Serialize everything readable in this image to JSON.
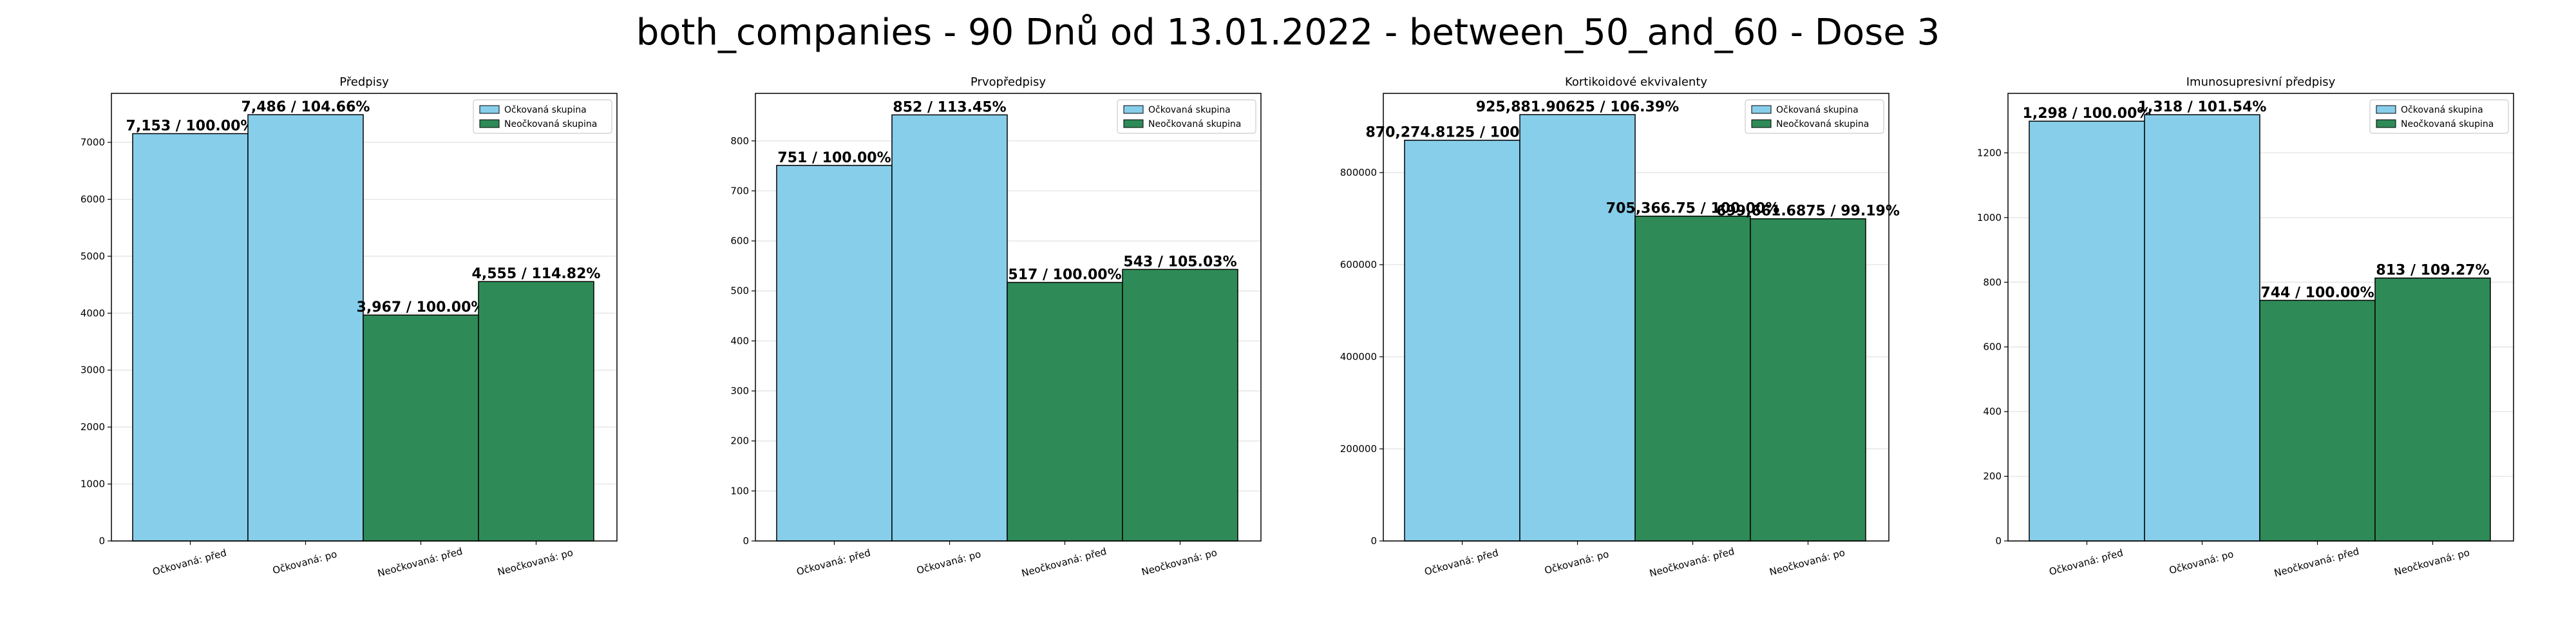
{
  "suptitle": "both_companies - 90 Dnů od 13.01.2022 - between_50_and_60 - Dose 3",
  "colors": {
    "vaccinated": "#87CEEB",
    "unvaccinated": "#2E8B57",
    "edge": "#000000",
    "grid": "#e6e6e6"
  },
  "chart_data": [
    {
      "type": "bar",
      "title": "Předpisy",
      "categories": [
        "Očkovaná: před",
        "Očkovaná: po",
        "Neočkovaná: před",
        "Neočkovaná: po"
      ],
      "values": [
        7153,
        7486,
        3967,
        4555
      ],
      "bar_labels": [
        "7,153 / 100.00%",
        "7,486 / 104.66%",
        "3,967 / 100.00%",
        "4,555 / 114.82%"
      ],
      "groups": [
        "vaccinated",
        "vaccinated",
        "unvaccinated",
        "unvaccinated"
      ],
      "legend": [
        "Očkovaná skupina",
        "Neočkovaná skupina"
      ],
      "legend_position": "top-right",
      "ylim": [
        0,
        7860
      ],
      "yticks": [
        0,
        1000,
        2000,
        3000,
        4000,
        5000,
        6000,
        7000
      ],
      "ytick_labels": [
        "0",
        "1000",
        "2000",
        "3000",
        "4000",
        "5000",
        "6000",
        "7000"
      ],
      "grid": true
    },
    {
      "type": "bar",
      "title": "Prvopředpisy",
      "categories": [
        "Očkovaná: před",
        "Očkovaná: po",
        "Neočkovaná: před",
        "Neočkovaná: po"
      ],
      "values": [
        751,
        852,
        517,
        543
      ],
      "bar_labels": [
        "751 / 100.00%",
        "852 / 113.45%",
        "517 / 100.00%",
        "543 / 105.03%"
      ],
      "groups": [
        "vaccinated",
        "vaccinated",
        "unvaccinated",
        "unvaccinated"
      ],
      "legend": [
        "Očkovaná skupina",
        "Neočkovaná skupina"
      ],
      "legend_position": "top-right",
      "ylim": [
        0,
        895
      ],
      "yticks": [
        0,
        100,
        200,
        300,
        400,
        500,
        600,
        700,
        800
      ],
      "ytick_labels": [
        "0",
        "100",
        "200",
        "300",
        "400",
        "500",
        "600",
        "700",
        "800"
      ],
      "grid": true
    },
    {
      "type": "bar",
      "title": "Kortikoidové ekvivalenty",
      "categories": [
        "Očkovaná: před",
        "Očkovaná: po",
        "Neočkovaná: před",
        "Neočkovaná: po"
      ],
      "values": [
        870274.8125,
        925881.90625,
        705366.75,
        699661.6875
      ],
      "bar_labels": [
        "870,274.8125 / 100.00%",
        "925,881.90625 / 106.39%",
        "705,366.75 / 100.00%",
        "699,661.6875 / 99.19%"
      ],
      "groups": [
        "vaccinated",
        "vaccinated",
        "unvaccinated",
        "unvaccinated"
      ],
      "legend": [
        "Očkovaná skupina",
        "Neočkovaná skupina"
      ],
      "legend_position": "top-right",
      "ylim": [
        0,
        972000
      ],
      "yticks": [
        0,
        200000,
        400000,
        600000,
        800000
      ],
      "ytick_labels": [
        "0",
        "200000",
        "400000",
        "600000",
        "800000"
      ],
      "grid": true
    },
    {
      "type": "bar",
      "title": "Imunosupresivní předpisy",
      "categories": [
        "Očkovaná: před",
        "Očkovaná: po",
        "Neočkovaná: před",
        "Neočkovaná: po"
      ],
      "values": [
        1298,
        1318,
        744,
        813
      ],
      "bar_labels": [
        "1,298 / 100.00%",
        "1,318 / 101.54%",
        "744 / 100.00%",
        "813 / 109.27%"
      ],
      "groups": [
        "vaccinated",
        "vaccinated",
        "unvaccinated",
        "unvaccinated"
      ],
      "legend": [
        "Očkovaná skupina",
        "Neočkovaná skupina"
      ],
      "legend_position": "top-right",
      "ylim": [
        0,
        1384
      ],
      "yticks": [
        0,
        200,
        400,
        600,
        800,
        1000,
        1200
      ],
      "ytick_labels": [
        "0",
        "200",
        "400",
        "600",
        "800",
        "1000",
        "1200"
      ],
      "grid": true
    }
  ]
}
